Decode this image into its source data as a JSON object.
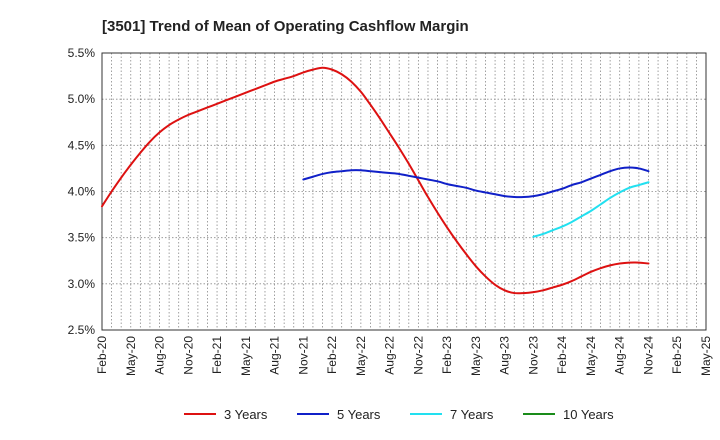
{
  "chart_data": {
    "type": "line",
    "title": "[3501]  Trend of Mean of Operating Cashflow Margin",
    "xlabel": "",
    "ylabel": "",
    "x_ticks": [
      "Feb-20",
      "May-20",
      "Aug-20",
      "Nov-20",
      "Feb-21",
      "May-21",
      "Aug-21",
      "Nov-21",
      "Feb-22",
      "May-22",
      "Aug-22",
      "Nov-22",
      "Feb-23",
      "May-23",
      "Aug-23",
      "Nov-23",
      "Feb-24",
      "May-24",
      "Aug-24",
      "Nov-24",
      "Feb-25",
      "May-25"
    ],
    "y_ticks": [
      "2.5%",
      "3.0%",
      "3.5%",
      "4.0%",
      "4.5%",
      "5.0%",
      "5.5%"
    ],
    "ylim": [
      2.5,
      5.5
    ],
    "grid": true,
    "legend_position": "bottom",
    "series": [
      {
        "name": "3 Years",
        "color": "#dd1111",
        "x": [
          "Feb-20",
          "Mar-20",
          "Apr-20",
          "May-20",
          "Jun-20",
          "Jul-20",
          "Aug-20",
          "Sep-20",
          "Oct-20",
          "Nov-20",
          "Dec-20",
          "Jan-21",
          "Feb-21",
          "Mar-21",
          "Apr-21",
          "May-21",
          "Jun-21",
          "Jul-21",
          "Aug-21",
          "Sep-21",
          "Oct-21",
          "Nov-21",
          "Dec-21",
          "Jan-22",
          "Feb-22",
          "Mar-22",
          "Apr-22",
          "May-22",
          "Jun-22",
          "Jul-22",
          "Aug-22",
          "Sep-22",
          "Oct-22",
          "Nov-22",
          "Dec-22",
          "Jan-23",
          "Feb-23",
          "Mar-23",
          "Apr-23",
          "May-23",
          "Jun-23",
          "Jul-23",
          "Aug-23",
          "Sep-23",
          "Oct-23",
          "Nov-23",
          "Dec-23",
          "Jan-24",
          "Feb-24",
          "Mar-24",
          "Apr-24",
          "May-24",
          "Jun-24",
          "Jul-24",
          "Aug-24",
          "Sep-24",
          "Oct-24",
          "Nov-24"
        ],
        "values": [
          3.84,
          4.0,
          4.15,
          4.29,
          4.42,
          4.54,
          4.64,
          4.72,
          4.78,
          4.83,
          4.87,
          4.91,
          4.95,
          4.99,
          5.03,
          5.07,
          5.11,
          5.15,
          5.19,
          5.22,
          5.25,
          5.29,
          5.32,
          5.34,
          5.32,
          5.27,
          5.19,
          5.08,
          4.94,
          4.79,
          4.63,
          4.47,
          4.3,
          4.12,
          3.94,
          3.77,
          3.61,
          3.46,
          3.32,
          3.19,
          3.08,
          2.99,
          2.93,
          2.9,
          2.9,
          2.91,
          2.93,
          2.96,
          2.99,
          3.03,
          3.08,
          3.13,
          3.17,
          3.2,
          3.22,
          3.23,
          3.23,
          3.22
        ]
      },
      {
        "name": "5 Years",
        "color": "#1020c8",
        "x": [
          "Nov-21",
          "Dec-21",
          "Jan-22",
          "Feb-22",
          "Mar-22",
          "Apr-22",
          "May-22",
          "Jun-22",
          "Jul-22",
          "Aug-22",
          "Sep-22",
          "Oct-22",
          "Nov-22",
          "Dec-22",
          "Jan-23",
          "Feb-23",
          "Mar-23",
          "Apr-23",
          "May-23",
          "Jun-23",
          "Jul-23",
          "Aug-23",
          "Sep-23",
          "Oct-23",
          "Nov-23",
          "Dec-23",
          "Jan-24",
          "Feb-24",
          "Mar-24",
          "Apr-24",
          "May-24",
          "Jun-24",
          "Jul-24",
          "Aug-24",
          "Sep-24",
          "Oct-24",
          "Nov-24"
        ],
        "values": [
          4.13,
          4.16,
          4.19,
          4.21,
          4.22,
          4.23,
          4.23,
          4.22,
          4.21,
          4.2,
          4.19,
          4.17,
          4.15,
          4.13,
          4.11,
          4.08,
          4.06,
          4.04,
          4.01,
          3.99,
          3.97,
          3.95,
          3.94,
          3.94,
          3.95,
          3.97,
          4.0,
          4.03,
          4.07,
          4.1,
          4.14,
          4.18,
          4.22,
          4.25,
          4.26,
          4.25,
          4.22
        ]
      },
      {
        "name": "7 Years",
        "color": "#22e0f0",
        "x": [
          "Nov-23",
          "Dec-23",
          "Jan-24",
          "Feb-24",
          "Mar-24",
          "Apr-24",
          "May-24",
          "Jun-24",
          "Jul-24",
          "Aug-24",
          "Sep-24",
          "Oct-24",
          "Nov-24"
        ],
        "values": [
          3.51,
          3.54,
          3.58,
          3.62,
          3.67,
          3.73,
          3.79,
          3.86,
          3.93,
          3.99,
          4.04,
          4.07,
          4.1
        ]
      },
      {
        "name": "10 Years",
        "color": "#1a8c1a",
        "x": [],
        "values": []
      }
    ]
  }
}
